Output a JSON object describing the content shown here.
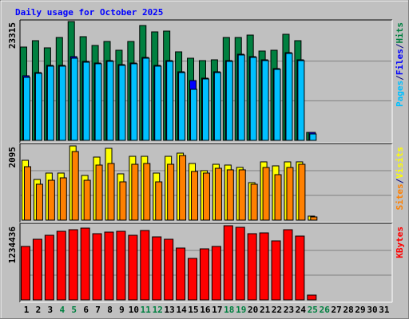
{
  "chart_data": [
    {
      "type": "bar",
      "title": "Daily usage for October 2025",
      "ylim": [
        0,
        23315
      ],
      "yticks": [
        23315
      ],
      "legend_separator": "/",
      "series": [
        {
          "name": "Hits",
          "color": "#008040",
          "values": [
            18310,
            19562,
            18154,
            20188,
            23315,
            20345,
            18623,
            19406,
            17684,
            19406,
            22536,
            21284,
            21440,
            17371,
            16119,
            15650,
            15806,
            20188,
            20188,
            20658,
            17528,
            17684,
            20814,
            19562,
            1565,
            0,
            0,
            0,
            0,
            0,
            0
          ]
        },
        {
          "name": "Files",
          "color": "#0000ff",
          "values": [
            12676,
            13302,
            14711,
            14711,
            16432,
            15493,
            15180,
            15650,
            14867,
            15180,
            16276,
            14711,
            15650,
            13459,
            11737,
            12207,
            13459,
            15650,
            16902,
            16432,
            15806,
            14085,
            17215,
            15806,
            1565,
            0,
            0,
            0,
            0,
            0,
            0
          ]
        },
        {
          "name": "Pages",
          "color": "#00c0ff",
          "values": [
            12363,
            13150,
            14560,
            14560,
            16119,
            15337,
            15030,
            15500,
            14720,
            15030,
            16120,
            14560,
            15500,
            13300,
            10016,
            12050,
            13300,
            15500,
            16750,
            16280,
            15650,
            13930,
            17060,
            15650,
            1252,
            0,
            0,
            0,
            0,
            0,
            0
          ]
        }
      ]
    },
    {
      "type": "bar",
      "ylim": [
        0,
        2095
      ],
      "yticks": [
        2095
      ],
      "series": [
        {
          "name": "Visits",
          "color": "#ffff00",
          "values": [
            1690,
            1149,
            1329,
            1329,
            2095,
            1262,
            1780,
            2028,
            1307,
            1802,
            1802,
            1329,
            1802,
            1892,
            1600,
            1397,
            1577,
            1555,
            1490,
            1059,
            1645,
            1532,
            1645,
            1645,
            113,
            0,
            0,
            0,
            0,
            0,
            0
          ]
        },
        {
          "name": "Sites",
          "color": "#ff8000",
          "values": [
            1509,
            1014,
            1126,
            1194,
            1937,
            1126,
            1555,
            1600,
            1081,
            1577,
            1600,
            1081,
            1577,
            1825,
            1374,
            1329,
            1464,
            1420,
            1420,
            1014,
            1487,
            1284,
            1487,
            1577,
            90,
            0,
            0,
            0,
            0,
            0,
            0
          ]
        }
      ]
    },
    {
      "type": "bar",
      "ylim": [
        0,
        1234436
      ],
      "yticks": [
        1234436
      ],
      "categories": [
        "1",
        "2",
        "3",
        "4",
        "5",
        "6",
        "7",
        "8",
        "9",
        "10",
        "11",
        "12",
        "13",
        "14",
        "15",
        "16",
        "17",
        "18",
        "19",
        "20",
        "21",
        "22",
        "23",
        "24",
        "25",
        "26",
        "27",
        "28",
        "29",
        "30",
        "31"
      ],
      "category_colors": [
        "#000000",
        "#000000",
        "#000000",
        "#008040",
        "#008040",
        "#000000",
        "#000000",
        "#000000",
        "#000000",
        "#000000",
        "#008040",
        "#008040",
        "#000000",
        "#000000",
        "#000000",
        "#000000",
        "#000000",
        "#008040",
        "#008040",
        "#000000",
        "#000000",
        "#000000",
        "#000000",
        "#000000",
        "#008040",
        "#008040",
        "#000000",
        "#000000",
        "#000000",
        "#000000",
        "#000000"
      ],
      "series": [
        {
          "name": "KBytes",
          "color": "#ff0000",
          "values": [
            889291,
            1008748,
            1075113,
            1141478,
            1168024,
            1194570,
            1101659,
            1128205,
            1141478,
            1075113,
            1154751,
            1048567,
            1008748,
            862745,
            690196,
            849472,
            889291,
            1234436,
            1207890,
            1101659,
            1114932,
            982202,
            1168024,
            1061840,
            79638,
            0,
            0,
            0,
            0,
            0,
            0
          ]
        }
      ]
    }
  ]
}
